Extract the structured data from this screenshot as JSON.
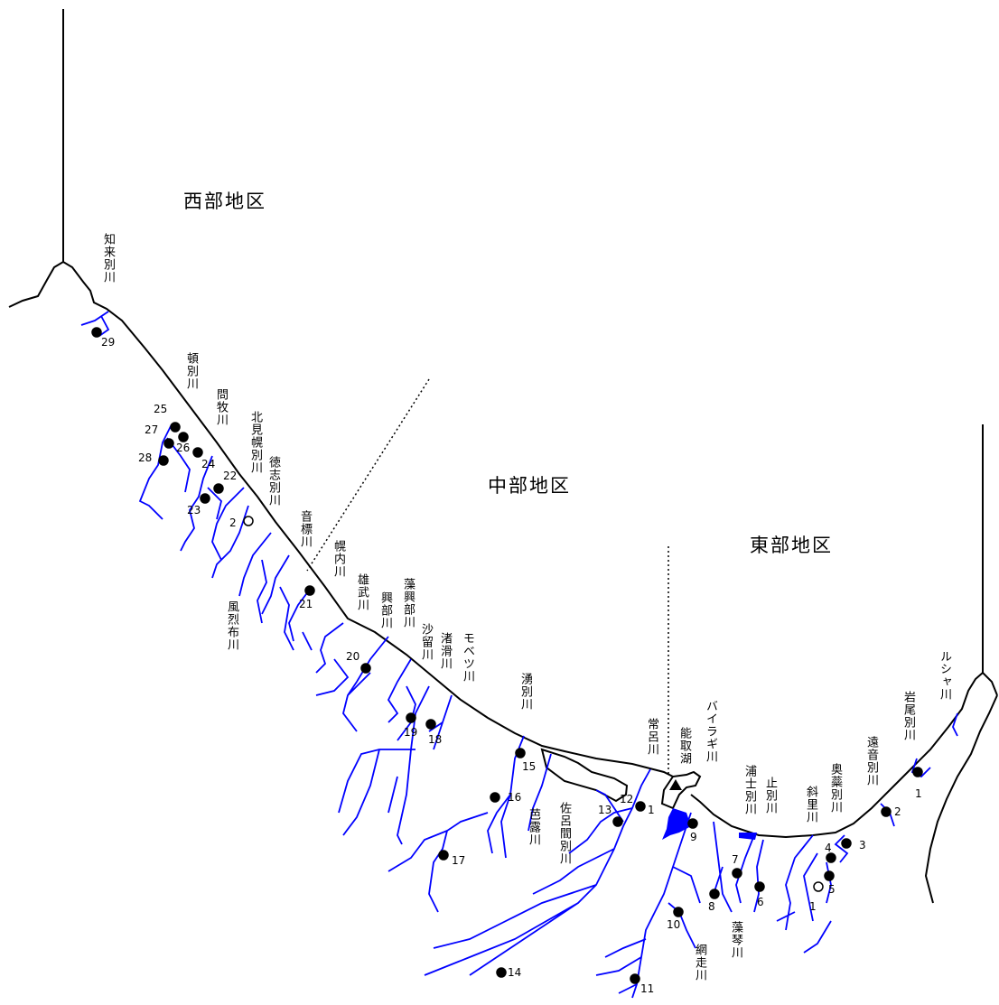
{
  "districts": [
    "西部地区",
    "中部地区",
    "東部地区"
  ],
  "rivers": [
    "知来別川",
    "頓別川",
    "問牧川",
    "北見幌別川",
    "徳志別川",
    "音標川",
    "風烈布川",
    "幌内川",
    "雄武川",
    "興部川",
    "藻興部川",
    "沙留川",
    "渚滑川",
    "モベツ川",
    "湧別川",
    "芭露川",
    "佐呂間別川",
    "常呂川",
    "能取湖",
    "バイラギ川",
    "網走川",
    "藻琴川",
    "浦士別川",
    "止別川",
    "斜里川",
    "奥蘂別川",
    "遠音別川",
    "岩尾別川",
    "ルシャ川"
  ],
  "stations": [
    "29",
    "25",
    "27",
    "26",
    "28",
    "24",
    "22",
    "23",
    "2",
    "21",
    "20",
    "19",
    "18",
    "15",
    "16",
    "17",
    "12",
    "13",
    "1",
    "9",
    "7",
    "8",
    "6",
    "10",
    "11",
    "14",
    "4",
    "3",
    "5",
    "1",
    "2",
    "1"
  ]
}
